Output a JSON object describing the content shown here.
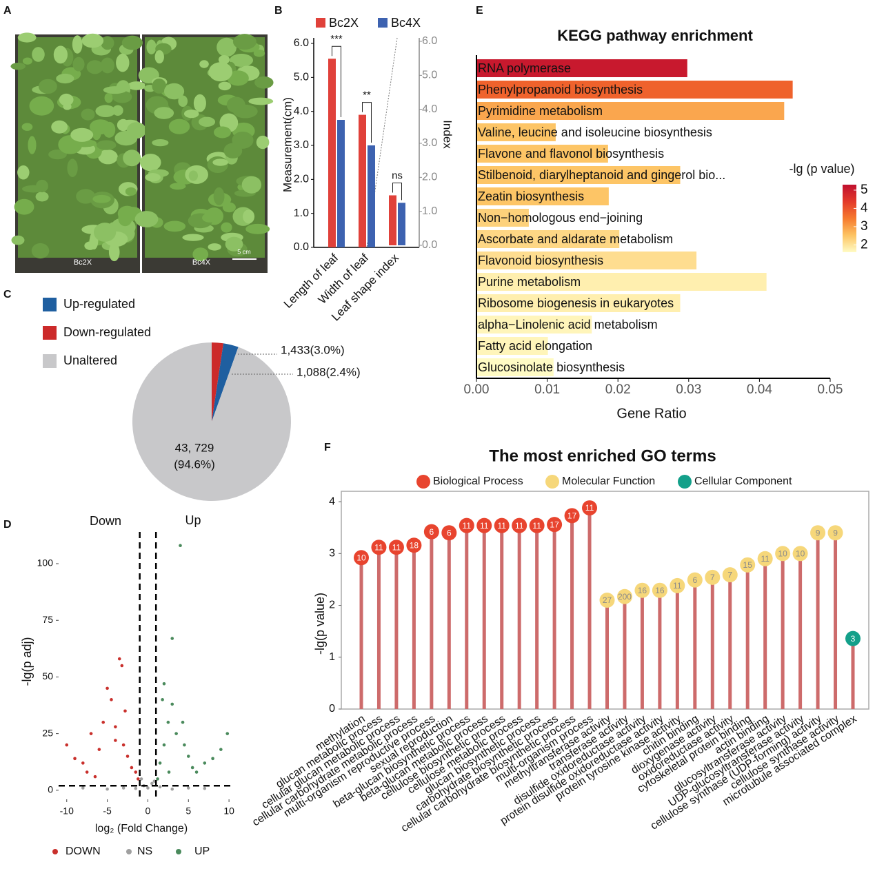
{
  "panels": [
    "A",
    "B",
    "C",
    "D",
    "E",
    "F"
  ],
  "photo": {
    "labels": [
      "Bc2X",
      "Bc4X"
    ],
    "scale_label": "5 cm"
  },
  "chart_data": [
    {
      "type": "bar",
      "ylabel": "Measurement(cm)",
      "y2label": "Index",
      "categories": [
        "Length of leaf",
        "Width of leaf",
        "Leaf shape index"
      ],
      "category_axis": [
        "y",
        "y",
        "y2"
      ],
      "series": [
        {
          "name": "Bc2X",
          "color": "#e0413a",
          "values": [
            5.55,
            3.9,
            1.47
          ]
        },
        {
          "name": "Bc4X",
          "color": "#3d62b0",
          "values": [
            3.75,
            3.0,
            1.25
          ]
        }
      ],
      "annotations": [
        "***",
        "**",
        "ns"
      ],
      "ylim": [
        0,
        6
      ],
      "yticks": [
        {
          "value": 0,
          "label": "0.0"
        },
        {
          "value": 1,
          "label": "1.0"
        },
        {
          "value": 2,
          "label": "2.0"
        },
        {
          "value": 3,
          "label": "3.0"
        },
        {
          "value": 4,
          "label": "4.0"
        },
        {
          "value": 5,
          "label": "5.0"
        },
        {
          "value": 6,
          "label": "6.0"
        }
      ],
      "y2lim": [
        0,
        6
      ],
      "y2ticks": [
        {
          "value": 0,
          "label": "0.0"
        },
        {
          "value": 1,
          "label": "1.0"
        },
        {
          "value": 2,
          "label": "2.0"
        },
        {
          "value": 3,
          "label": "3.0"
        },
        {
          "value": 4,
          "label": "4.0"
        },
        {
          "value": 5,
          "label": "5.0"
        },
        {
          "value": 6,
          "label": "6.0"
        }
      ]
    },
    {
      "type": "pie",
      "categories": [
        "Up-regulated",
        "Down-regulated",
        "Unaltered"
      ],
      "values": [
        1433,
        1088,
        43729
      ],
      "value_labels": [
        "1,433(3.0%)",
        "1,088(2.4%)",
        [
          "43, 729",
          "(94.6%)"
        ]
      ],
      "colors": [
        "#1f5fa0",
        "#cc2a2a",
        "#c8c8ca"
      ]
    },
    {
      "type": "scatter",
      "labels": [
        "Down",
        "Up"
      ],
      "xlabel": "log₂ (Fold Change)",
      "ylabel": "-lg(p adj)",
      "series": [
        {
          "name": "DOWN",
          "color": "#c9302c",
          "x": [
            -10,
            -9,
            -8,
            -7.5,
            -7,
            -6,
            -5.5,
            -5,
            -4.5,
            -4,
            -3.5,
            -3,
            -2.5,
            -2,
            -1.5,
            -1.2,
            -3.2,
            -2.8,
            -4,
            -6.5
          ],
          "y": [
            20,
            14,
            12,
            8,
            25,
            18,
            30,
            45,
            40,
            28,
            58,
            20,
            15,
            10,
            8,
            5,
            55,
            35,
            22,
            6
          ]
        },
        {
          "name": "NS",
          "color": "#a0a0a0",
          "x": [
            -8,
            -5,
            -3,
            -1.5,
            -0.5,
            0,
            0.5,
            1.5,
            3,
            5,
            7,
            -0.8,
            0.8
          ],
          "y": [
            1,
            0.5,
            1,
            0.8,
            2,
            1,
            3,
            1.5,
            0.5,
            1,
            0.8,
            5,
            4
          ]
        },
        {
          "name": "UP",
          "color": "#4a8a5c",
          "x": [
            1.2,
            1.5,
            2,
            2.5,
            3,
            3.5,
            4,
            4.5,
            5,
            5.5,
            6,
            7,
            8,
            9,
            9.8,
            3,
            2,
            4.3,
            1.8,
            2.6
          ],
          "y": [
            5,
            12,
            20,
            30,
            38,
            25,
            108,
            20,
            15,
            10,
            8,
            12,
            14,
            18,
            25,
            67,
            47,
            30,
            40,
            8
          ]
        }
      ],
      "thresholds": {
        "x": [
          -1,
          1
        ],
        "y": 2
      },
      "xlim": [
        -11,
        10.5
      ],
      "xticks": [
        -10,
        -5,
        0,
        5,
        10
      ],
      "ylim": [
        -4,
        114
      ],
      "yticks": [
        0,
        25,
        50,
        75,
        100
      ]
    },
    {
      "type": "hbar",
      "title": "KEGG pathway enrichment",
      "xlabel": "Gene Ratio",
      "categories": [
        "RNA polymerase",
        "Phenylpropanoid biosynthesis",
        "Pyrimidine metabolism",
        "Valine, leucine and isoleucine biosynthesis",
        "Flavone and flavonol biosynthesis",
        "Stilbenoid, diarylheptanoid and gingerol bio...",
        "Zeatin biosynthesis",
        "Non−homologous end−joining",
        "Ascorbate and aldarate metabolism",
        "Flavonoid biosynthesis",
        "Purine metabolism",
        "Ribosome biogenesis in eukaryotes",
        "alpha−Linolenic acid metabolism",
        "Fatty acid elongation",
        "Glucosinolate biosynthesis"
      ],
      "values": [
        0.0298,
        0.0447,
        0.0435,
        0.0112,
        0.0186,
        0.0288,
        0.0187,
        0.0074,
        0.0202,
        0.0311,
        0.041,
        0.0288,
        0.0163,
        0.0101,
        0.0109
      ],
      "color_values": [
        5.1,
        3.8,
        2.9,
        2.5,
        2.5,
        2.5,
        2.5,
        2.3,
        2.2,
        2.1,
        1.8,
        1.8,
        1.7,
        1.7,
        1.6
      ],
      "colorbar": {
        "label": "-lg (p value)",
        "lim": [
          1.6,
          5.3
        ],
        "ticks": [
          2,
          3,
          4,
          5
        ],
        "colors": [
          "#fffbc4",
          "#fdc463",
          "#f67a2e",
          "#e33a2a",
          "#c0102f"
        ]
      },
      "xlim": [
        0,
        0.05
      ],
      "xticks": [
        {
          "value": 0,
          "label": "0.00"
        },
        0.01,
        0.02,
        0.03,
        0.04,
        0.05
      ]
    },
    {
      "type": "lollipop",
      "title": "The most enriched GO terms",
      "ylabel": "-lg(p value)",
      "stem_color": "#cd6b6b",
      "series": [
        {
          "name": "Biological Process",
          "color": "#e8442e",
          "label_color": "#ffffff",
          "categories": [
            "methylation",
            "glucan metabolic process",
            "cellular glucan metabolic process",
            "cellular carbohydrate metabolic process",
            "multi-organism reproductive process",
            "sexual reproduction",
            "beta-glucan biosynthetic process",
            "beta-glucan metabolic process",
            "cellulose biosynthetic process",
            "cellulose metabolic process",
            "glucan biosynthetic process",
            "carbohydrate biosynthetic process",
            "cellular carbohydrate biosynthetic process",
            "multi-organism process"
          ],
          "values": [
            2.92,
            3.12,
            3.12,
            3.16,
            3.42,
            3.4,
            3.54,
            3.54,
            3.54,
            3.54,
            3.54,
            3.56,
            3.73,
            3.88
          ],
          "counts": [
            10,
            11,
            11,
            18,
            6,
            6,
            11,
            11,
            11,
            11,
            11,
            17,
            17,
            11
          ]
        },
        {
          "name": "Molecular Function",
          "color": "#f6d77a",
          "label_color": "#8a8a8a",
          "categories": [
            "methyltransferase activity",
            "transferase activity",
            "disulfide oxidoreductase activity",
            "protein disulfide oxidoreductase activity",
            "protein tyrosine kinase activity",
            "chitin binding",
            "dioxygenase activity",
            "oxidoreductase activity",
            "cytoskeletal protein binding",
            "actin binding",
            "glucosyltransferase activity",
            "UDP-glucosyltransferase activity",
            "cellulose synthase (UDP-forming) activity",
            "cellulose synthase activity"
          ],
          "values": [
            2.1,
            2.17,
            2.29,
            2.29,
            2.38,
            2.49,
            2.54,
            2.59,
            2.78,
            2.9,
            3.0,
            3.0,
            3.4,
            3.4
          ],
          "counts": [
            27,
            200,
            16,
            16,
            11,
            6,
            7,
            7,
            15,
            11,
            10,
            10,
            9,
            9
          ]
        },
        {
          "name": "Cellular Component",
          "color": "#13a08a",
          "label_color": "#ffffff",
          "categories": [
            "microtubule associated complex"
          ],
          "values": [
            1.36
          ],
          "counts": [
            3
          ]
        }
      ],
      "ylim": [
        0,
        4.2
      ],
      "yticks": [
        0,
        1,
        2,
        3,
        4
      ]
    }
  ]
}
